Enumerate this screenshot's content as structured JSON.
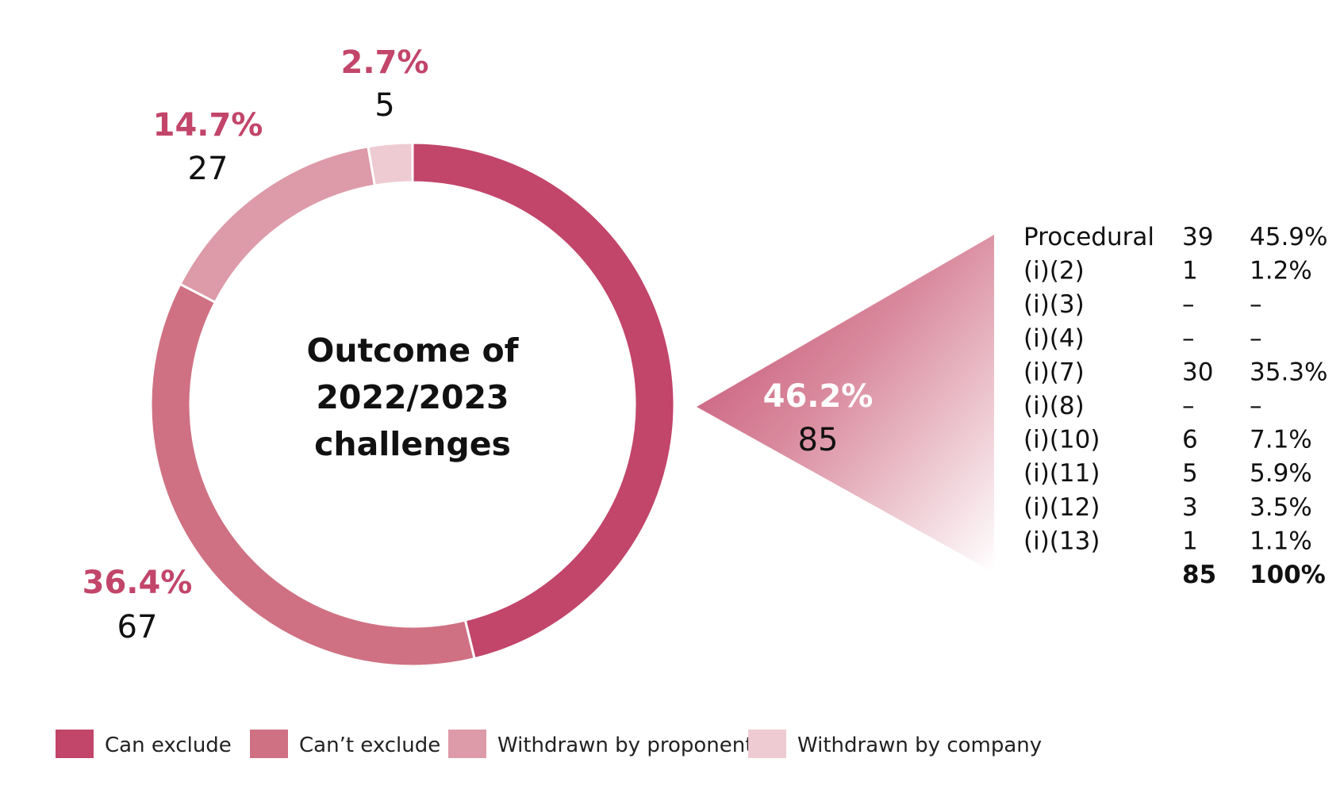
{
  "chart_data": {
    "type": "pie",
    "variant": "donut",
    "title": "Outcome of 2022/2023 challenges",
    "title_lines": [
      "Outcome of",
      "2022/2023",
      "challenges"
    ],
    "legend_position": "bottom-left",
    "slices": [
      {
        "name": "Can exclude",
        "value": 85,
        "percent": "46.2%",
        "color": "#c2456a"
      },
      {
        "name": "Can't exclude",
        "value": 67,
        "percent": "36.4%",
        "color": "#cf7183"
      },
      {
        "name": "Withdrawn by proponent",
        "value": 27,
        "percent": "14.7%",
        "color": "#dd9aa8"
      },
      {
        "name": "Withdrawn by company",
        "value": 5,
        "percent": "2.7%",
        "color": "#eecbd2"
      }
    ],
    "legend": [
      {
        "label": "Can exclude",
        "color": "#c2456a"
      },
      {
        "label": "Can’t exclude",
        "color": "#cf7183"
      },
      {
        "label": "Withdrawn by proponent",
        "color": "#dd9aa8"
      },
      {
        "label": "Withdrawn by company",
        "color": "#eecbd2"
      }
    ],
    "breakdown": {
      "of_slice": "Can exclude",
      "rows": [
        {
          "label": "Procedural",
          "count": "39",
          "percent": "45.9%"
        },
        {
          "label": "(i)(2)",
          "count": "1",
          "percent": "1.2%"
        },
        {
          "label": "(i)(3)",
          "count": "–",
          "percent": "–"
        },
        {
          "label": "(i)(4)",
          "count": "–",
          "percent": "–"
        },
        {
          "label": "(i)(7)",
          "count": "30",
          "percent": "35.3%"
        },
        {
          "label": "(i)(8)",
          "count": "–",
          "percent": "–"
        },
        {
          "label": "(i)(10)",
          "count": "6",
          "percent": "7.1%"
        },
        {
          "label": "(i)(11)",
          "count": "5",
          "percent": "5.9%"
        },
        {
          "label": "(i)(12)",
          "count": "3",
          "percent": "3.5%"
        },
        {
          "label": "(i)(13)",
          "count": "1",
          "percent": "1.1%"
        }
      ],
      "total": {
        "count": "85",
        "percent": "100%"
      }
    }
  },
  "colors": {
    "accent_text": "#c2456a",
    "callout_label": "#ffffff"
  }
}
